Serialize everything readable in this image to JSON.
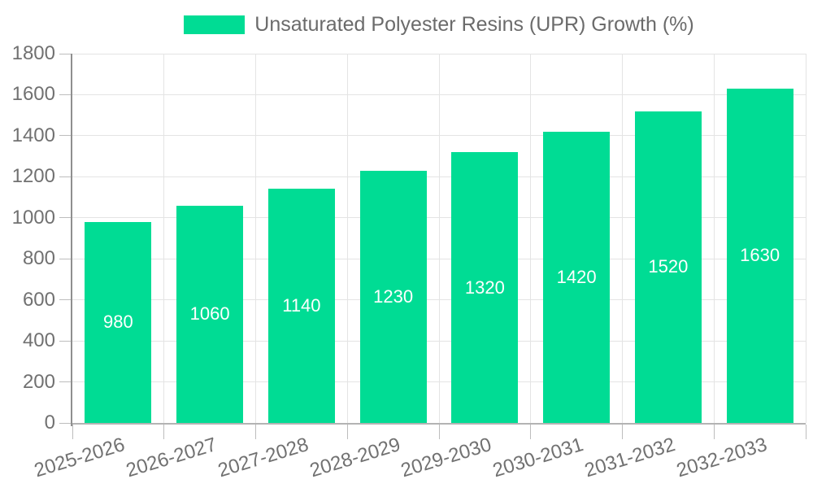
{
  "chart_data": {
    "type": "bar",
    "title": "Unsaturated Polyester Resins (UPR) Growth (%)",
    "legend": [
      "Unsaturated Polyester Resins (UPR) Growth (%)"
    ],
    "legend_position": "top-center",
    "categories": [
      "2025-2026",
      "2026-2027",
      "2027-2028",
      "2028-2029",
      "2029-2030",
      "2030-2031",
      "2031-2032",
      "2032-2033"
    ],
    "values": [
      980,
      1060,
      1140,
      1230,
      1320,
      1420,
      1520,
      1630
    ],
    "series_name": "Unsaturated Polyester Resins (UPR) Growth (%)",
    "xlabel": "",
    "ylabel": "",
    "ylim": [
      0,
      1800
    ],
    "y_ticks": [
      0,
      200,
      400,
      600,
      800,
      1000,
      1200,
      1400,
      1600,
      1800
    ],
    "grid": true,
    "bar_color": "#00DC94",
    "data_labels": {
      "position": "center",
      "color": "#ffffff"
    },
    "x_tick_rotation_deg": -17
  },
  "colors": {
    "background": "#ffffff",
    "bar": "#00DC94",
    "grid_line": "#e4e4e4",
    "y_axis_line": "#8f8f8f",
    "x_axis_line": "#b3b3b3",
    "tick_mark": "#bdbdbd",
    "axis_text": "#717171",
    "legend_text": "#6b6b6b",
    "data_label_text": "#ffffff"
  }
}
